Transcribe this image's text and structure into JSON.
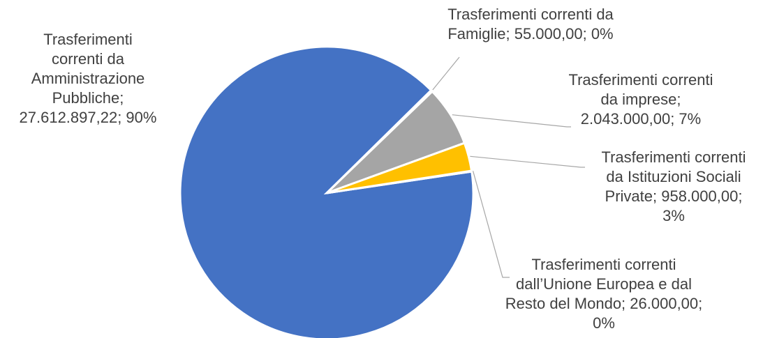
{
  "chart_data": {
    "type": "pie",
    "slices": [
      {
        "key": "amministrazioni",
        "category": "Trasferimenti correnti da Amministrazione Pubbliche",
        "value": 27612897.22,
        "value_label": "27.612.897,22",
        "percent_label": "90%",
        "color": "#4472C4",
        "label_lines": [
          "Trasferimenti",
          "correnti da",
          "Amministrazione",
          "Pubbliche;",
          "27.612.897,22; 90%"
        ]
      },
      {
        "key": "famiglie",
        "category": "Trasferimenti correnti da Famiglie",
        "value": 55000.0,
        "value_label": "55.000,00",
        "percent_label": "0%",
        "color": "#ED7D31",
        "label_lines": [
          "Trasferimenti correnti da",
          "Famiglie; 55.000,00; 0%"
        ]
      },
      {
        "key": "imprese",
        "category": "Trasferimenti correnti da imprese",
        "value": 2043000.0,
        "value_label": "2.043.000,00",
        "percent_label": "7%",
        "color": "#A5A5A5",
        "label_lines": [
          "Trasferimenti correnti",
          "da imprese;",
          "2.043.000,00; 7%"
        ]
      },
      {
        "key": "istituzioni",
        "category": "Trasferimenti correnti da Istituzioni Sociali Private",
        "value": 958000.0,
        "value_label": "958.000,00",
        "percent_label": "3%",
        "color": "#FFC000",
        "label_lines": [
          "Trasferimenti correnti",
          "da Istituzioni Sociali",
          "Private; 958.000,00;",
          "3%"
        ]
      },
      {
        "key": "ue",
        "category": "Trasferimenti correnti dall’Unione Europea e dal Resto del Mondo",
        "value": 26000.0,
        "value_label": "26.000,00",
        "percent_label": "0%",
        "color": "#5B9BD5",
        "label_lines": [
          "Trasferimenti correnti",
          "dall’Unione Europea e dal",
          "Resto del Mondo; 26.000,00;",
          "0%"
        ]
      }
    ],
    "start_angle_deg": 20,
    "direction": "counterclockwise",
    "legend": "none",
    "data_labels": "outside with leader lines"
  }
}
